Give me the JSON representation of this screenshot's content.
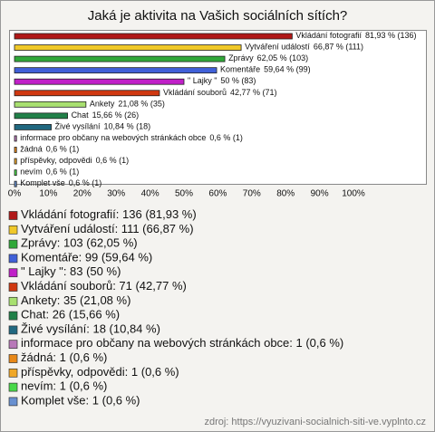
{
  "chart_data": {
    "type": "bar",
    "orientation": "horizontal",
    "title": "Jaká je aktivita na Vašich sociálních sítích?",
    "categories": [
      "Vkládání fotografií",
      "Vytváření událostí",
      "Zprávy",
      "Komentáře",
      "\" Lajky \"",
      "Vkládání souborů",
      "Ankety",
      "Chat",
      "Živé vysílání",
      "informace pro občany na webových stránkách obce",
      "žádná",
      "příspěvky, odpovědi",
      "nevím",
      "Komplet vše"
    ],
    "values": [
      81.93,
      66.87,
      62.05,
      59.64,
      50,
      42.77,
      21.08,
      15.66,
      10.84,
      0.6,
      0.6,
      0.6,
      0.6,
      0.6
    ],
    "value_labels": [
      "81,93 % (136)",
      "66,87 % (111)",
      "62,05 % (103)",
      "59,64 % (99)",
      "50 % (83)",
      "42,77 % (71)",
      "21,08 % (35)",
      "15,66 % (26)",
      "10,84 % (18)",
      "0,6 % (1)",
      "0,6 % (1)",
      "0,6 % (1)",
      "0,6 % (1)",
      "0,6 % (1)"
    ],
    "legend_labels": [
      ": 136 (81,93 %)",
      ": 111 (66,87 %)",
      ": 103 (62,05 %)",
      ": 99 (59,64 %)",
      ": 83 (50 %)",
      ": 71 (42,77 %)",
      ": 35 (21,08 %)",
      ": 26 (15,66 %)",
      ": 18 (10,84 %)",
      ": 1 (0,6 %)",
      ": 1 (0,6 %)",
      ": 1 (0,6 %)",
      ": 1 (0,6 %)",
      ": 1 (0,6 %)"
    ],
    "colors": [
      "#b01818",
      "#f0c828",
      "#30a838",
      "#4060d8",
      "#c020c8",
      "#d03810",
      "#a8e070",
      "#208048",
      "#206880",
      "#b878b8",
      "#e88818",
      "#f0a828",
      "#48d848",
      "#6890d0"
    ],
    "xlim": [
      0,
      100
    ],
    "xticks": [
      {
        "value": 0,
        "label": "0%"
      },
      {
        "value": 10,
        "label": "10%"
      },
      {
        "value": 20,
        "label": "20%"
      },
      {
        "value": 30,
        "label": "30%"
      },
      {
        "value": 40,
        "label": "40%"
      },
      {
        "value": 50,
        "label": "50%"
      },
      {
        "value": 60,
        "label": "60%"
      },
      {
        "value": 70,
        "label": "70%"
      },
      {
        "value": 80,
        "label": "80%"
      },
      {
        "value": 90,
        "label": "90%"
      },
      {
        "value": 100,
        "label": "100%"
      }
    ],
    "grid": false,
    "source": "zdroj: https://vyuzivani-socialnich-siti-ve.vyplnto.cz"
  }
}
